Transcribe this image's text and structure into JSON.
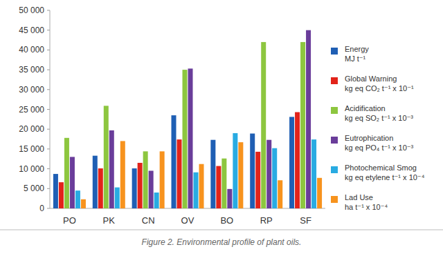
{
  "chart_data": {
    "type": "bar",
    "title": "Figure 2. Environmental profile of plant oils.",
    "categories": [
      "PO",
      "PK",
      "CN",
      "OV",
      "BO",
      "RP",
      "SF"
    ],
    "series": [
      {
        "name": "Energy",
        "unit": "MJ t⁻¹",
        "color": "#1f5fb4",
        "values": [
          8700,
          13300,
          10100,
          23500,
          17300,
          18900,
          23100
        ]
      },
      {
        "name": "Global Warning",
        "unit": "kg eq CO₂ t⁻¹ x 10⁻¹",
        "color": "#e2231a",
        "values": [
          6600,
          10100,
          11500,
          17400,
          10700,
          14300,
          24300
        ]
      },
      {
        "name": "Acidification",
        "unit": "kg eq SO₂ t⁻¹ x 10⁻³",
        "color": "#8dc63f",
        "values": [
          17800,
          25900,
          14400,
          35000,
          12600,
          42000,
          42000
        ]
      },
      {
        "name": "Eutrophication",
        "unit": "kg eq PO₄ t⁻¹ x 10⁻³",
        "color": "#6a3d9a",
        "values": [
          13000,
          19700,
          9500,
          35300,
          4900,
          17300,
          45000
        ]
      },
      {
        "name": "Photochemical Smog",
        "unit": "kg eq etylene t⁻¹ x 10⁻⁴",
        "color": "#29abe2",
        "values": [
          4500,
          5300,
          4000,
          9100,
          19000,
          15200,
          17400
        ]
      },
      {
        "name": "Lad Use",
        "unit": "ha t⁻¹ x 10⁻⁴",
        "color": "#f7931e",
        "values": [
          2300,
          17000,
          14400,
          11200,
          16700,
          7100,
          7700
        ]
      }
    ],
    "ylim": [
      0,
      50000
    ],
    "yticks": [
      0,
      {
        "value": 5000,
        "label": "5 000"
      },
      {
        "value": 10000,
        "label": "10 000"
      },
      {
        "value": 15000,
        "label": "15 000"
      },
      {
        "value": 20000,
        "label": "20 000"
      },
      {
        "value": 25000,
        "label": "25 000"
      },
      {
        "value": 30000,
        "label": "30 000"
      },
      {
        "value": 35000,
        "label": "35 000"
      },
      {
        "value": 40000,
        "label": "40 000"
      },
      {
        "value": 45000,
        "label": "45 000"
      },
      {
        "value": 50000,
        "label": "50 000"
      }
    ],
    "grid": false,
    "legend": "right"
  }
}
